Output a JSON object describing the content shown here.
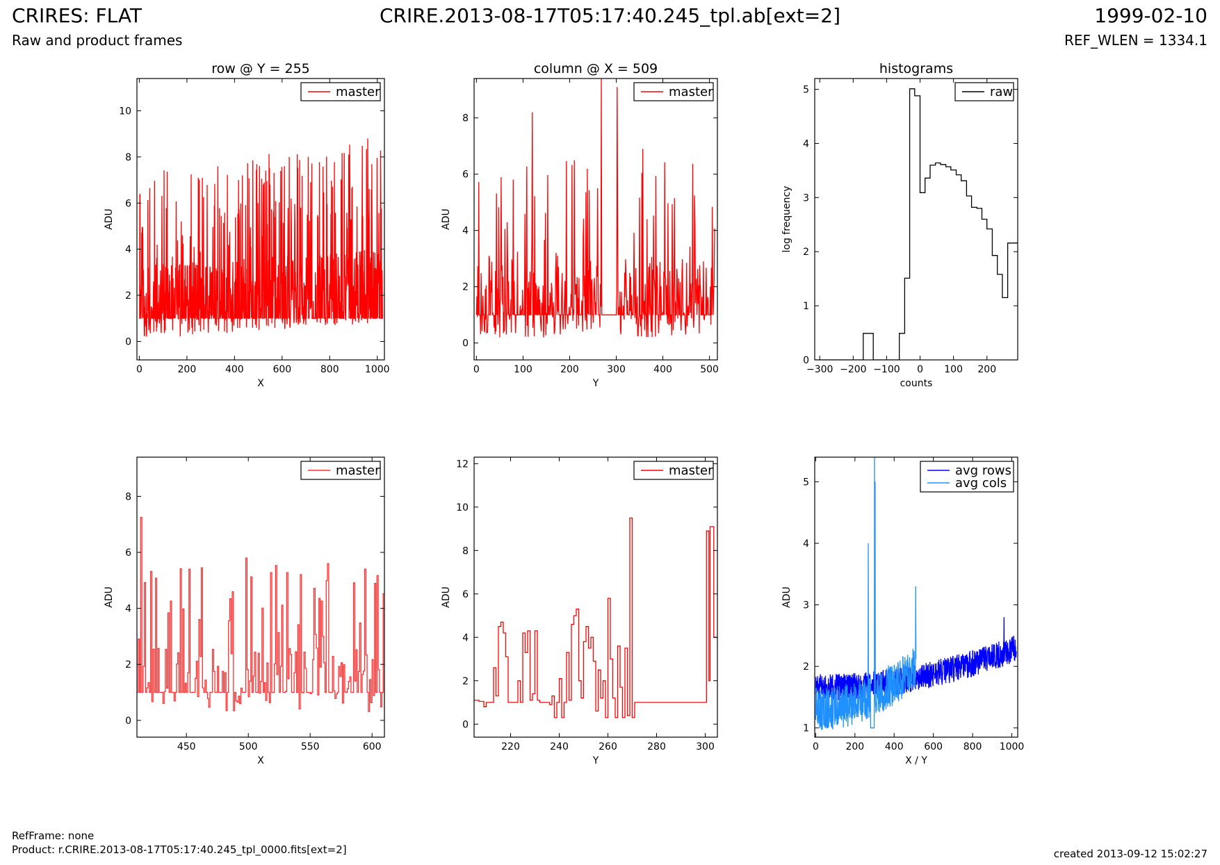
{
  "header": {
    "title_left": "CRIRES: FLAT",
    "subtitle_left": "Raw and product frames",
    "title_center": "CRIRE.2013-08-17T05:17:40.245_tpl.ab[ext=2]",
    "title_right": "1999-02-10",
    "subtitle_right": "REF_WLEN = 1334.1"
  },
  "footer": {
    "ref_frame": "RefFrame: none",
    "product": "Product: r.CRIRE.2013-08-17T05:17:40.245_tpl_0000.fits[ext=2]",
    "created": "created 2013-09-12 15:02:27"
  },
  "colors": {
    "master": "#ff0000",
    "raw": "#000000",
    "avg_rows": "#0000ff",
    "avg_cols": "#1e90ff"
  },
  "chart_data": [
    {
      "type": "line",
      "title": "row @ Y = 255",
      "xlabel": "X",
      "ylabel": "ADU",
      "xlim": [
        -10,
        1030
      ],
      "ylim": [
        -0.8,
        11.4
      ],
      "xticks": [
        0,
        200,
        400,
        600,
        800,
        1000
      ],
      "yticks": [
        0,
        2,
        4,
        6,
        8,
        10
      ],
      "legend": "top-right",
      "series": [
        {
          "name": "master",
          "color": "#ff0000",
          "generator": {
            "kind": "noise",
            "x0": 0,
            "x1": 1023,
            "n": 1024,
            "base": 1,
            "low": 0.1,
            "high": 3.3,
            "spikeProb": 0.12,
            "spikeMin": 3.5,
            "spikeMax": 7.5,
            "trend": 1.2,
            "seed": 11
          },
          "points": [
            [
              248,
              7.1
            ],
            [
              433,
              7.2
            ],
            [
              630,
              8.0
            ],
            [
              960,
              8.8
            ],
            [
              880,
              8.1
            ]
          ]
        }
      ]
    },
    {
      "type": "line",
      "title": "column @ X = 509",
      "xlabel": "Y",
      "ylabel": "ADU",
      "xlim": [
        -5,
        517
      ],
      "ylim": [
        -0.6,
        9.4
      ],
      "xticks": [
        0,
        100,
        200,
        300,
        400,
        500
      ],
      "yticks": [
        0,
        2,
        4,
        6,
        8
      ],
      "legend": "top-right",
      "series": [
        {
          "name": "master",
          "color": "#ff0000",
          "generator": {
            "kind": "noise",
            "x0": 0,
            "x1": 511,
            "n": 512,
            "base": 1,
            "low": 0.2,
            "high": 3.0,
            "spikeProb": 0.14,
            "spikeMin": 3.0,
            "spikeMax": 6.5,
            "trend": 0,
            "seed": 23,
            "flat": [
              [
                269,
                300,
                1
              ]
            ]
          },
          "points": [
            [
              120,
              8.2
            ],
            [
              268,
              9.4
            ],
            [
              302,
              9.1
            ],
            [
              357,
              6.9
            ]
          ]
        }
      ]
    },
    {
      "type": "line",
      "title": "histograms",
      "xlabel": "counts",
      "ylabel": "log frequency",
      "xlim": [
        -315,
        292
      ],
      "ylim": [
        0,
        5.2
      ],
      "xticks": [
        -300,
        -200,
        -100,
        0,
        100,
        200
      ],
      "yticks": [
        0,
        1,
        2,
        3,
        4,
        5
      ],
      "legend": "top-right",
      "series": [
        {
          "name": "raw",
          "color": "#000000",
          "step": true,
          "points": [
            [
              -315,
              0
            ],
            [
              -170,
              0
            ],
            [
              -170,
              0.49
            ],
            [
              -140,
              0.49
            ],
            [
              -140,
              0
            ],
            [
              -62,
              0
            ],
            [
              -62,
              0.49
            ],
            [
              -46,
              0.49
            ],
            [
              -46,
              1.51
            ],
            [
              -31,
              1.51
            ],
            [
              -31,
              5.01
            ],
            [
              -16,
              5.01
            ],
            [
              -16,
              4.88
            ],
            [
              0,
              4.88
            ],
            [
              0,
              3.09
            ],
            [
              15,
              3.09
            ],
            [
              15,
              3.36
            ],
            [
              30,
              3.36
            ],
            [
              30,
              3.6
            ],
            [
              46,
              3.6
            ],
            [
              46,
              3.64
            ],
            [
              61,
              3.64
            ],
            [
              61,
              3.61
            ],
            [
              77,
              3.61
            ],
            [
              77,
              3.57
            ],
            [
              92,
              3.57
            ],
            [
              92,
              3.51
            ],
            [
              108,
              3.51
            ],
            [
              108,
              3.42
            ],
            [
              123,
              3.42
            ],
            [
              123,
              3.31
            ],
            [
              139,
              3.31
            ],
            [
              139,
              3.03
            ],
            [
              154,
              3.03
            ],
            [
              154,
              2.82
            ],
            [
              170,
              2.82
            ],
            [
              170,
              2.8
            ],
            [
              185,
              2.8
            ],
            [
              185,
              2.6
            ],
            [
              200,
              2.6
            ],
            [
              200,
              2.42
            ],
            [
              216,
              2.42
            ],
            [
              216,
              1.93
            ],
            [
              231,
              1.93
            ],
            [
              231,
              1.58
            ],
            [
              246,
              1.58
            ],
            [
              246,
              1.15
            ],
            [
              262,
              1.15
            ],
            [
              262,
              2.16
            ],
            [
              292,
              2.16
            ]
          ]
        }
      ]
    },
    {
      "type": "line",
      "title": "",
      "xlabel": "X",
      "ylabel": "ADU",
      "xlim": [
        410,
        610
      ],
      "ylim": [
        -0.6,
        9.4
      ],
      "xticks": [
        450,
        500,
        550,
        600
      ],
      "yticks": [
        0,
        2,
        4,
        6,
        8
      ],
      "legend": "top-right",
      "series": [
        {
          "name": "master",
          "color": "#ff3030",
          "step": true,
          "generator": {
            "kind": "noise",
            "x0": 410,
            "x1": 610,
            "n": 201,
            "base": 1,
            "low": 0.3,
            "high": 2.6,
            "spikeProb": 0.2,
            "spikeMin": 2.8,
            "spikeMax": 5.6,
            "trend": 0,
            "seed": 37
          },
          "points": [
            [
              413,
              7.25
            ],
            [
              452,
              5.4
            ],
            [
              498,
              5.8
            ],
            [
              564,
              5.6
            ]
          ]
        }
      ]
    },
    {
      "type": "line",
      "title": "",
      "xlabel": "Y",
      "ylabel": "ADU",
      "xlim": [
        205,
        305
      ],
      "ylim": [
        -0.6,
        12.3
      ],
      "xticks": [
        220,
        240,
        260,
        280,
        300
      ],
      "yticks": [
        0,
        2,
        4,
        6,
        8,
        10,
        12
      ],
      "legend": "top-right",
      "series": [
        {
          "name": "master",
          "color": "#ff0000",
          "step": true,
          "points": [
            [
              205,
              1.1
            ],
            [
              207,
              1.05
            ],
            [
              209,
              0.8
            ],
            [
              210,
              1.0
            ],
            [
              212,
              1.0
            ],
            [
              213,
              2.6
            ],
            [
              214,
              1.3
            ],
            [
              215,
              4.5
            ],
            [
              216,
              4.7
            ],
            [
              217,
              4.2
            ],
            [
              218,
              3.1
            ],
            [
              219,
              1.0
            ],
            [
              222,
              1.0
            ],
            [
              223,
              2.0
            ],
            [
              224,
              1.0
            ],
            [
              225,
              4.2
            ],
            [
              226,
              3.3
            ],
            [
              227,
              4.3
            ],
            [
              228,
              1.1
            ],
            [
              229,
              1.4
            ],
            [
              230,
              4.3
            ],
            [
              231,
              1.1
            ],
            [
              232,
              1.0
            ],
            [
              235,
              1.0
            ],
            [
              236,
              0.9
            ],
            [
              237,
              1.3
            ],
            [
              238,
              0.3
            ],
            [
              239,
              1.0
            ],
            [
              240,
              2.1
            ],
            [
              241,
              0.3
            ],
            [
              242,
              1.0
            ],
            [
              243,
              3.3
            ],
            [
              244,
              1.1
            ],
            [
              245,
              4.6
            ],
            [
              246,
              5.0
            ],
            [
              247,
              5.3
            ],
            [
              248,
              2.0
            ],
            [
              249,
              1.2
            ],
            [
              250,
              3.8
            ],
            [
              251,
              4.5
            ],
            [
              252,
              3.5
            ],
            [
              253,
              4.0
            ],
            [
              254,
              2.9
            ],
            [
              255,
              0.6
            ],
            [
              256,
              2.5
            ],
            [
              257,
              1.2
            ],
            [
              258,
              2.0
            ],
            [
              259,
              0.3
            ],
            [
              260,
              5.8
            ],
            [
              261,
              3.0
            ],
            [
              262,
              1.2
            ],
            [
              263,
              0.3
            ],
            [
              264,
              3.6
            ],
            [
              265,
              1.7
            ],
            [
              266,
              0.3
            ],
            [
              267,
              3.5
            ],
            [
              268,
              0.4
            ],
            [
              269,
              9.5
            ],
            [
              270,
              0.3
            ],
            [
              271,
              1.0
            ],
            [
              300,
              1.0
            ],
            [
              300.5,
              8.9
            ],
            [
              301.5,
              2.0
            ],
            [
              302,
              9.1
            ],
            [
              303.5,
              4.0
            ],
            [
              305,
              4.0
            ]
          ]
        }
      ]
    },
    {
      "type": "line",
      "title": "",
      "xlabel": "X / Y",
      "ylabel": "ADU",
      "xlim": [
        -5,
        1030
      ],
      "ylim": [
        0.85,
        5.4
      ],
      "xticks": [
        0,
        200,
        400,
        600,
        800,
        1000
      ],
      "yticks": [
        1,
        2,
        3,
        4,
        5
      ],
      "legend": "top-right",
      "series": [
        {
          "name": "avg rows",
          "color": "#0000ff",
          "generator": {
            "kind": "band",
            "x0": 0,
            "x1": 1023,
            "n": 1024,
            "start": 1.65,
            "end": 2.3,
            "noise": 0.22,
            "seed": 51
          },
          "points": [
            [
              960,
              2.8
            ]
          ]
        },
        {
          "name": "avg cols",
          "color": "#1e90ff",
          "generator": {
            "kind": "band",
            "x0": 0,
            "x1": 511,
            "n": 512,
            "start": 1.3,
            "end": 2.0,
            "noise": 0.35,
            "seed": 63,
            "flat": [
              [
                280,
                298,
                1.0
              ]
            ]
          },
          "points": [
            [
              268,
              4.0
            ],
            [
              300,
              5.4
            ],
            [
              303,
              5.0
            ],
            [
              510,
              3.3
            ]
          ]
        }
      ]
    }
  ]
}
